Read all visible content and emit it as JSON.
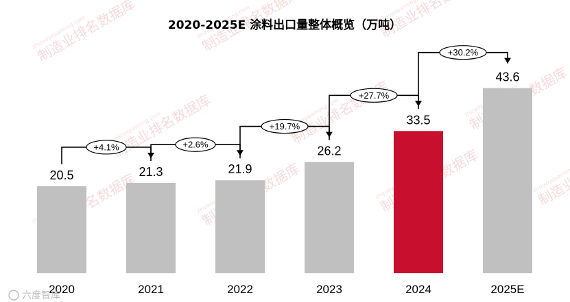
{
  "chart_data": {
    "type": "bar",
    "title": "2020-2025E 涂料出口量整体概览（万吨）",
    "categories": [
      "2020",
      "2021",
      "2022",
      "2023",
      "2024",
      "2025E"
    ],
    "values": [
      20.5,
      21.3,
      21.9,
      26.2,
      33.5,
      43.6
    ],
    "value_labels": [
      "20.5",
      "21.3",
      "21.9",
      "26.2",
      "33.5",
      "43.6"
    ],
    "growth_labels": [
      "+4.1%",
      "+2.6%",
      "+19.7%",
      "+27.7%",
      "+30.2%"
    ],
    "highlight_index": 4,
    "ylim": [
      0,
      48
    ],
    "grid": false,
    "legend": "none",
    "colors": {
      "bar": "#c0c0c0",
      "highlight": "#c8102e"
    }
  },
  "watermark": {
    "text": "制造业排名数据库",
    "url": "zhizaoyepaiming.com"
  },
  "footer": {
    "text": "六度智库"
  }
}
